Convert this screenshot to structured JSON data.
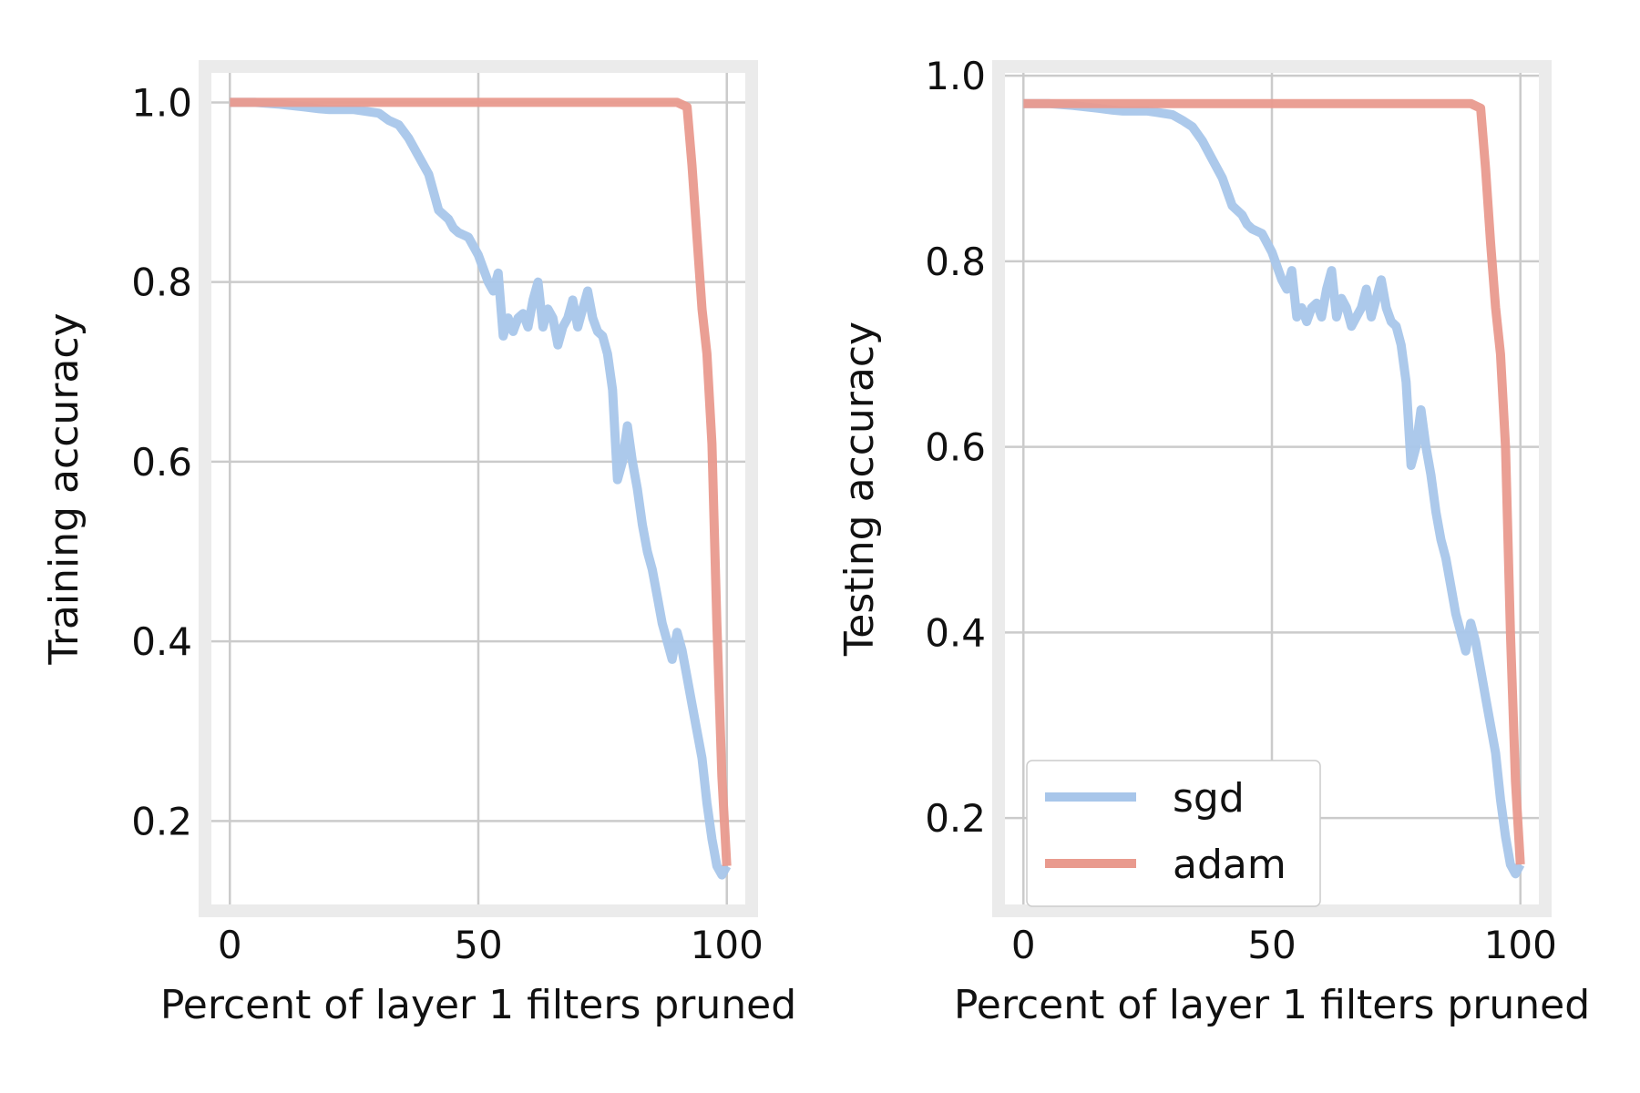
{
  "chart_data": [
    {
      "type": "line",
      "xlabel": "Percent of layer 1 filters pruned",
      "ylabel": "Training accuracy",
      "xlim": [
        -5,
        105
      ],
      "ylim": [
        0.1,
        1.04
      ],
      "xticks": [
        0,
        50,
        100
      ],
      "yticks": [
        0.2,
        0.4,
        0.6,
        0.8,
        1.0
      ],
      "xtick_labels": [
        "0",
        "50",
        "100"
      ],
      "ytick_labels": [
        "0.2",
        "0.4",
        "0.6",
        "0.8",
        "1.0"
      ],
      "grid": true,
      "legend": null,
      "series": [
        {
          "name": "sgd",
          "color": "#a8c6ea",
          "x": [
            0,
            5,
            10,
            15,
            18,
            20,
            25,
            30,
            32,
            34,
            36,
            38,
            40,
            42,
            44,
            45,
            46,
            48,
            50,
            52,
            53,
            54,
            55,
            56,
            57,
            58,
            59,
            60,
            61,
            62,
            63,
            64,
            65,
            66,
            67,
            68,
            69,
            70,
            71,
            72,
            73,
            74,
            75,
            76,
            77,
            78,
            79,
            80,
            81,
            82,
            83,
            84,
            85,
            86,
            87,
            88,
            89,
            90,
            91,
            92,
            93,
            94,
            95,
            96,
            97,
            98,
            99,
            100
          ],
          "y": [
            1.0,
            1.0,
            0.998,
            0.995,
            0.993,
            0.992,
            0.992,
            0.988,
            0.98,
            0.975,
            0.96,
            0.94,
            0.92,
            0.88,
            0.87,
            0.86,
            0.855,
            0.85,
            0.83,
            0.8,
            0.79,
            0.81,
            0.74,
            0.76,
            0.745,
            0.76,
            0.765,
            0.75,
            0.78,
            0.8,
            0.75,
            0.77,
            0.76,
            0.73,
            0.75,
            0.76,
            0.78,
            0.75,
            0.77,
            0.79,
            0.76,
            0.745,
            0.74,
            0.72,
            0.68,
            0.58,
            0.6,
            0.64,
            0.6,
            0.57,
            0.53,
            0.5,
            0.48,
            0.45,
            0.42,
            0.4,
            0.38,
            0.41,
            0.39,
            0.36,
            0.33,
            0.3,
            0.27,
            0.22,
            0.18,
            0.15,
            0.14,
            0.15
          ]
        },
        {
          "name": "adam",
          "color": "#e99a8e",
          "x": [
            0,
            20,
            40,
            60,
            80,
            90,
            92,
            93,
            94,
            95,
            96,
            97,
            98,
            99,
            100
          ],
          "y": [
            1.0,
            1.0,
            1.0,
            1.0,
            1.0,
            1.0,
            0.995,
            0.93,
            0.85,
            0.77,
            0.72,
            0.62,
            0.42,
            0.25,
            0.15
          ]
        }
      ]
    },
    {
      "type": "line",
      "xlabel": "Percent of layer 1 filters pruned",
      "ylabel": "Testing accuracy",
      "xlim": [
        -5,
        105
      ],
      "ylim": [
        0.1,
        1.01
      ],
      "xticks": [
        0,
        50,
        100
      ],
      "yticks": [
        0.2,
        0.4,
        0.6,
        0.8,
        1.0
      ],
      "xtick_labels": [
        "0",
        "50",
        "100"
      ],
      "ytick_labels": [
        "0.2",
        "0.4",
        "0.6",
        "0.8",
        "1.0"
      ],
      "grid": true,
      "legend": "lower-left",
      "series": [
        {
          "name": "sgd",
          "color": "#a8c6ea",
          "x": [
            0,
            5,
            10,
            15,
            18,
            20,
            25,
            30,
            32,
            34,
            36,
            38,
            40,
            42,
            44,
            45,
            46,
            48,
            50,
            52,
            53,
            54,
            55,
            56,
            57,
            58,
            59,
            60,
            61,
            62,
            63,
            64,
            65,
            66,
            67,
            68,
            69,
            70,
            71,
            72,
            73,
            74,
            75,
            76,
            77,
            78,
            79,
            80,
            81,
            82,
            83,
            84,
            85,
            86,
            87,
            88,
            89,
            90,
            91,
            92,
            93,
            94,
            95,
            96,
            97,
            98,
            99,
            100
          ],
          "y": [
            0.97,
            0.97,
            0.968,
            0.965,
            0.963,
            0.962,
            0.962,
            0.958,
            0.952,
            0.945,
            0.93,
            0.91,
            0.89,
            0.86,
            0.85,
            0.84,
            0.835,
            0.83,
            0.81,
            0.78,
            0.77,
            0.79,
            0.74,
            0.75,
            0.735,
            0.75,
            0.755,
            0.74,
            0.77,
            0.79,
            0.74,
            0.76,
            0.75,
            0.73,
            0.74,
            0.75,
            0.77,
            0.74,
            0.76,
            0.78,
            0.75,
            0.735,
            0.73,
            0.71,
            0.67,
            0.58,
            0.6,
            0.64,
            0.6,
            0.57,
            0.53,
            0.5,
            0.48,
            0.45,
            0.42,
            0.4,
            0.38,
            0.41,
            0.39,
            0.36,
            0.33,
            0.3,
            0.27,
            0.22,
            0.18,
            0.15,
            0.14,
            0.15
          ]
        },
        {
          "name": "adam",
          "color": "#e99a8e",
          "x": [
            0,
            20,
            40,
            60,
            80,
            90,
            92,
            93,
            94,
            95,
            96,
            97,
            98,
            99,
            100
          ],
          "y": [
            0.97,
            0.97,
            0.97,
            0.97,
            0.97,
            0.97,
            0.965,
            0.9,
            0.82,
            0.75,
            0.7,
            0.6,
            0.4,
            0.24,
            0.15
          ]
        }
      ]
    }
  ]
}
